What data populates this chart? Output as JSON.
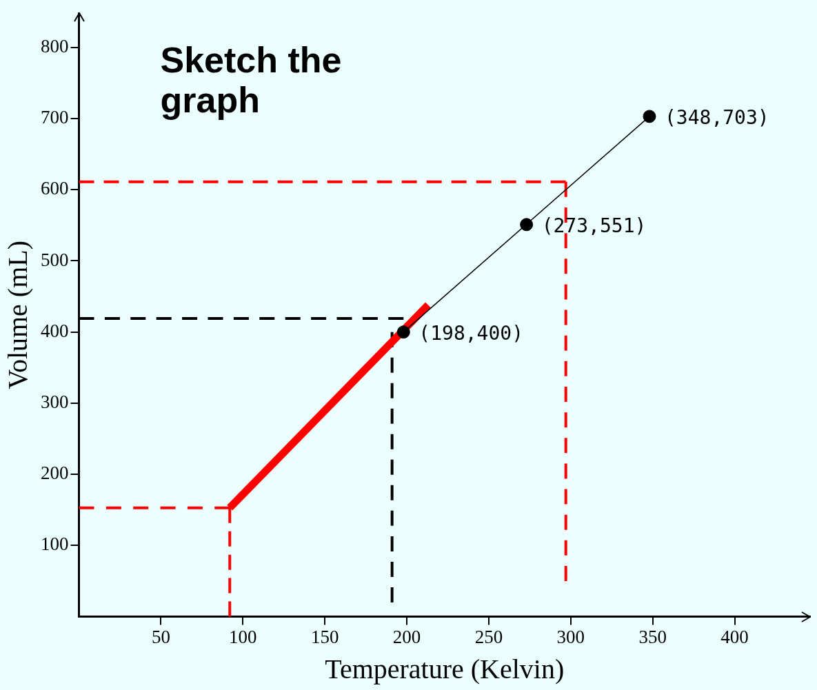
{
  "chart_data": {
    "type": "line",
    "xlabel": "Temperature (Kelvin)",
    "ylabel": "Volume (mL)",
    "xlim": [
      0,
      446
    ],
    "ylim": [
      0,
      848
    ],
    "xticks": [
      50,
      100,
      150,
      200,
      250,
      300,
      350,
      400
    ],
    "yticks": [
      100,
      200,
      300,
      400,
      500,
      600,
      700,
      800
    ],
    "grid": false,
    "legend": false,
    "series": [
      {
        "color": "#000000",
        "x": [
          198,
          348
        ],
        "values": [
          400,
          703
        ]
      },
      {
        "color": "#ff0000",
        "x": [
          92,
          213
        ],
        "values": [
          153,
          438
        ]
      },
      {
        "type": "scatter",
        "color": "#000000",
        "marker": "circle",
        "x": [
          198,
          273,
          348
        ],
        "values": [
          400,
          551,
          703
        ]
      },
      {
        "type": "line",
        "line_style": "dashed",
        "color": "#ff0000",
        "x": [
          0,
          92
        ],
        "values": [
          153,
          153
        ]
      },
      {
        "type": "line",
        "line_style": "dashed",
        "color": "#ff0000",
        "x": [
          92,
          92
        ],
        "values": [
          153,
          0
        ]
      },
      {
        "type": "line",
        "line_style": "dashed",
        "color": "#ff0000",
        "x": [
          0,
          297
        ],
        "values": [
          611,
          611
        ]
      },
      {
        "type": "line",
        "line_style": "dashed",
        "color": "#ff0000",
        "x": [
          297,
          297
        ],
        "values": [
          611,
          50
        ]
      },
      {
        "type": "line",
        "line_style": "dashed",
        "color": "#000000",
        "x": [
          0,
          198
        ],
        "values": [
          419,
          419
        ]
      },
      {
        "type": "line",
        "line_style": "dashed",
        "color": "#000000",
        "x": [
          191,
          191
        ],
        "values": [
          400,
          20
        ]
      }
    ],
    "annotations": [
      "Sketch the graph",
      {
        "text": "(198,400)",
        "x": 198,
        "y": 400
      },
      {
        "text": "(273,551)",
        "x": 273,
        "y": 551
      },
      {
        "text": "(348,703)",
        "x": 348,
        "y": 703
      }
    ]
  }
}
